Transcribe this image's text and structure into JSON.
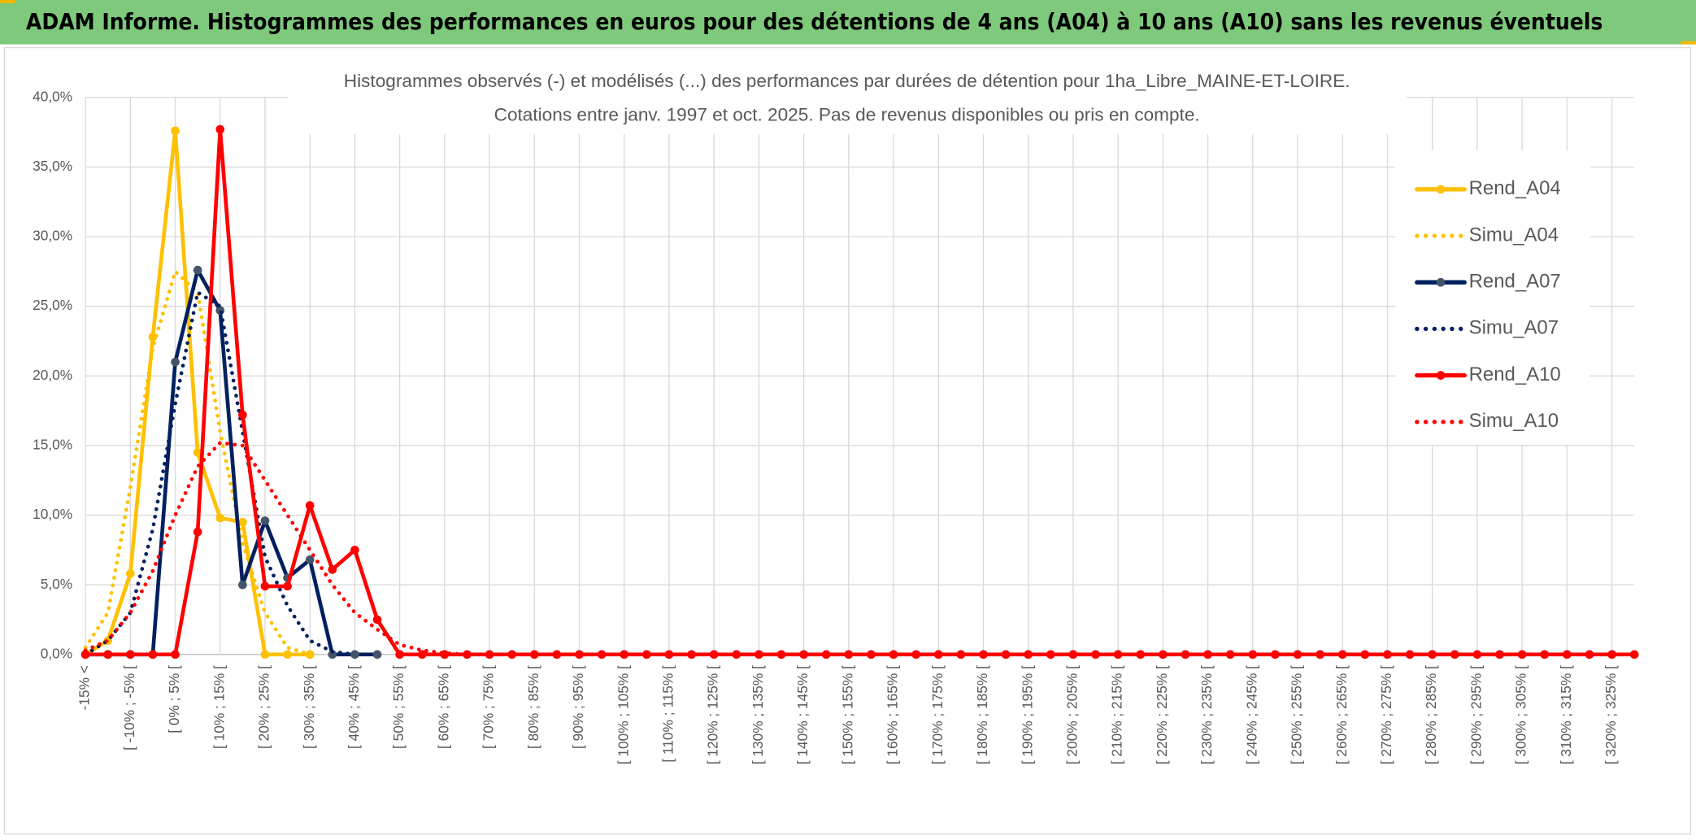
{
  "header": "ADAM Informe. Histogrammes des performances en euros pour des détentions de 4 ans (A04) à 10 ans (A10) sans les revenus éventuels",
  "chart_data": {
    "type": "line",
    "title": "Histogrammes observés (-) et modélisés (...) des performances par durées de détention pour 1ha_Libre_MAINE-ET-LOIRE.",
    "subtitle": "Cotations entre janv. 1997 et oct. 2025. Pas de revenus disponibles ou pris en compte.",
    "categories": [
      "-15% <",
      null,
      "[ -10% ; -5% [",
      null,
      "[ 0% ; 5% [",
      null,
      "[ 10% ; 15% [",
      null,
      "[ 20% ; 25% [",
      null,
      "[ 30% ; 35% [",
      null,
      "[ 40% ; 45% [",
      null,
      "[ 50% ; 55% [",
      null,
      "[ 60% ; 65% [",
      null,
      "[ 70% ; 75% [",
      null,
      "[ 80% ; 85% [",
      null,
      "[ 90% ; 95% [",
      null,
      "[ 100% ; 105% [",
      null,
      "[ 110% ; 115% [",
      null,
      "[ 120% ; 125% [",
      null,
      "[ 130% ; 135% [",
      null,
      "[ 140% ; 145% [",
      null,
      "[ 150% ; 155% [",
      null,
      "[ 160% ; 165% [",
      null,
      "[ 170% ; 175% [",
      null,
      "[ 180% ; 185% [",
      null,
      "[ 190% ; 195% [",
      null,
      "[ 200% ; 205% [",
      null,
      "[ 210% ; 215% [",
      null,
      "[ 220% ; 225% [",
      null,
      "[ 230% ; 235% [",
      null,
      "[ 240% ; 245% [",
      null,
      "[ 250% ; 255% [",
      null,
      "[ 260% ; 265% [",
      null,
      "[ 270% ; 275% [",
      null,
      "[ 280% ; 285% [",
      null,
      "[ 290% ; 295% [",
      null,
      "[ 300% ; 305% [",
      null,
      "[ 310% ; 315% [",
      null,
      "[ 320% ; 325% [",
      null
    ],
    "series": [
      {
        "name": "Rend_A04",
        "color": "#ffc000",
        "style": "solid",
        "values": [
          0,
          1,
          5.8,
          22.8,
          37.6,
          14.5,
          9.8,
          9.5,
          0,
          0,
          0,
          null,
          null,
          null,
          null,
          null,
          null,
          null,
          null,
          null,
          null,
          null,
          null,
          null,
          null,
          null,
          null,
          null,
          null,
          null,
          null,
          null,
          null,
          null,
          null,
          null,
          null,
          null,
          null,
          null,
          null,
          null,
          null,
          null,
          null,
          null,
          null,
          null,
          null,
          null,
          null,
          null,
          null,
          null,
          null,
          null,
          null,
          null,
          null,
          null,
          null,
          null,
          null,
          null,
          null,
          null,
          null,
          null,
          null,
          null
        ]
      },
      {
        "name": "Simu_A04",
        "color": "#ffc000",
        "style": "dotted",
        "values": [
          0.5,
          3,
          12,
          22,
          27.5,
          26,
          16,
          8,
          3,
          0.5,
          0,
          null,
          null,
          null,
          null,
          null,
          null,
          null,
          null,
          null,
          null,
          null,
          null,
          null,
          null,
          null,
          null,
          null,
          null,
          null,
          null,
          null,
          null,
          null,
          null,
          null,
          null,
          null,
          null,
          null,
          null,
          null,
          null,
          null,
          null,
          null,
          null,
          null,
          null,
          null,
          null,
          null,
          null,
          null,
          null,
          null,
          null,
          null,
          null,
          null,
          null,
          null,
          null,
          null,
          null,
          null,
          null,
          null,
          null,
          null
        ]
      },
      {
        "name": "Rend_A07",
        "color": "#002060",
        "marker_color": "#44546a",
        "style": "solid",
        "values": [
          0,
          0,
          0,
          0,
          21,
          27.6,
          24.7,
          5,
          9.6,
          5.5,
          6.8,
          0,
          0,
          0,
          null,
          null,
          null,
          null,
          null,
          null,
          null,
          null,
          null,
          null,
          null,
          null,
          null,
          null,
          null,
          null,
          null,
          null,
          null,
          null,
          null,
          null,
          null,
          null,
          null,
          null,
          null,
          null,
          null,
          null,
          null,
          null,
          null,
          null,
          null,
          null,
          null,
          null,
          null,
          null,
          null,
          null,
          null,
          null,
          null,
          null,
          null,
          null,
          null,
          null,
          null,
          null,
          null,
          null,
          null,
          null
        ]
      },
      {
        "name": "Simu_A07",
        "color": "#002060",
        "style": "dotted",
        "values": [
          0,
          1,
          3,
          9,
          18,
          26,
          25,
          16,
          7,
          3.5,
          1,
          0.2,
          0,
          null,
          null,
          null,
          null,
          null,
          null,
          null,
          null,
          null,
          null,
          null,
          null,
          null,
          null,
          null,
          null,
          null,
          null,
          null,
          null,
          null,
          null,
          null,
          null,
          null,
          null,
          null,
          null,
          null,
          null,
          null,
          null,
          null,
          null,
          null,
          null,
          null,
          null,
          null,
          null,
          null,
          null,
          null,
          null,
          null,
          null,
          null,
          null,
          null,
          null,
          null,
          null,
          null,
          null,
          null,
          null,
          null
        ]
      },
      {
        "name": "Rend_A10",
        "color": "#ff0000",
        "style": "solid",
        "values": [
          0,
          0,
          0,
          0,
          0,
          8.8,
          37.7,
          17.2,
          4.9,
          4.9,
          10.7,
          6.1,
          7.5,
          2.5,
          0,
          0,
          0,
          0,
          0,
          0,
          0,
          0,
          0,
          0,
          0,
          0,
          0,
          0,
          0,
          0,
          0,
          0,
          0,
          0,
          0,
          0,
          0,
          0,
          0,
          0,
          0,
          0,
          0,
          0,
          0,
          0,
          0,
          0,
          0,
          0,
          0,
          0,
          0,
          0,
          0,
          0,
          0,
          0,
          0,
          0,
          0,
          0,
          0,
          0,
          0,
          0,
          0,
          0,
          0,
          0
        ]
      },
      {
        "name": "Simu_A10",
        "color": "#ff0000",
        "style": "dotted",
        "values": [
          0.3,
          1,
          3,
          6,
          10,
          13.5,
          15.2,
          15,
          12.5,
          10,
          7.5,
          5,
          3,
          1.8,
          0.7,
          0.3,
          0.1,
          0,
          null,
          null,
          null,
          null,
          null,
          null,
          null,
          null,
          null,
          null,
          null,
          null,
          null,
          null,
          null,
          null,
          null,
          null,
          null,
          null,
          null,
          null,
          null,
          null,
          null,
          null,
          null,
          null,
          null,
          null,
          null,
          null,
          null,
          null,
          null,
          null,
          null,
          null,
          null,
          null,
          null,
          null,
          null,
          null,
          null,
          null,
          null,
          null,
          null,
          null,
          null,
          null
        ]
      }
    ],
    "ylim": [
      0,
      40
    ],
    "yticks": [
      {
        "value": 0,
        "label": "0,0%"
      },
      {
        "value": 5,
        "label": "5,0%"
      },
      {
        "value": 10,
        "label": "10,0%"
      },
      {
        "value": 15,
        "label": "15,0%"
      },
      {
        "value": 20,
        "label": "20,0%"
      },
      {
        "value": 25,
        "label": "25,0%"
      },
      {
        "value": 30,
        "label": "30,0%"
      },
      {
        "value": 35,
        "label": "35,0%"
      },
      {
        "value": 40,
        "label": "40,0%"
      }
    ],
    "grid": true,
    "legend": "right"
  }
}
